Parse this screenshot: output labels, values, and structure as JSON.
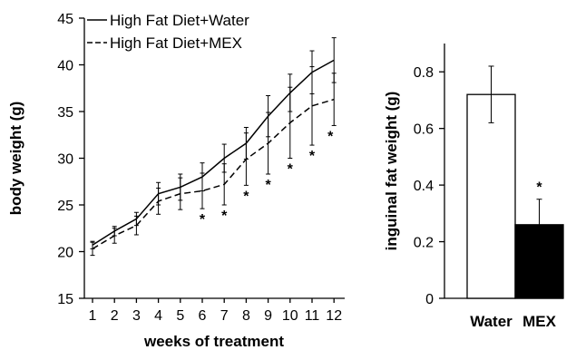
{
  "chart_data": [
    {
      "type": "line",
      "xlabel": "weeks of treatment",
      "ylabel": "body weight (g)",
      "x": [
        1,
        2,
        3,
        4,
        5,
        6,
        7,
        8,
        9,
        10,
        11,
        12
      ],
      "xticks": [
        "1",
        "2",
        "3",
        "4",
        "5",
        "6",
        "7",
        "8",
        "9",
        "10",
        "11",
        "12"
      ],
      "ylim": [
        15,
        45
      ],
      "yticks": [
        "15",
        "20",
        "25",
        "30",
        "35",
        "40",
        "45"
      ],
      "legend": "top-left",
      "series": [
        {
          "name": "High Fat Diet+Water",
          "style": "solid",
          "values": [
            20.7,
            22.2,
            23.5,
            26.2,
            26.9,
            28.0,
            30.0,
            31.6,
            34.5,
            37.0,
            39.2,
            40.5
          ],
          "error": [
            0.4,
            0.5,
            0.7,
            1.2,
            1.4,
            1.5,
            1.5,
            1.7,
            2.2,
            2.0,
            2.3,
            2.4
          ]
        },
        {
          "name": "High Fat Diet+MEX",
          "style": "dashed",
          "values": [
            20.3,
            21.7,
            22.8,
            25.4,
            26.2,
            26.5,
            27.2,
            29.9,
            31.6,
            33.8,
            35.6,
            36.3
          ],
          "error": [
            0.7,
            0.8,
            1.0,
            1.4,
            1.7,
            1.9,
            2.2,
            2.8,
            3.3,
            3.8,
            4.2,
            2.8
          ]
        }
      ],
      "significance": {
        "marker": "*",
        "weeks": [
          6,
          7,
          8,
          9,
          10,
          11,
          12
        ]
      }
    },
    {
      "type": "bar",
      "ylabel": "inguinal fat weight (g)",
      "categories": [
        "Water",
        "MEX"
      ],
      "values": [
        0.72,
        0.26
      ],
      "error": [
        0.1,
        0.09
      ],
      "ylim": [
        0,
        0.9
      ],
      "yticks": [
        "0",
        "0.2",
        "0.4",
        "0.6",
        "0.8"
      ],
      "bar_colors": [
        "#ffffff",
        "#000000"
      ],
      "significance": {
        "marker": "*",
        "category": "MEX"
      }
    }
  ]
}
